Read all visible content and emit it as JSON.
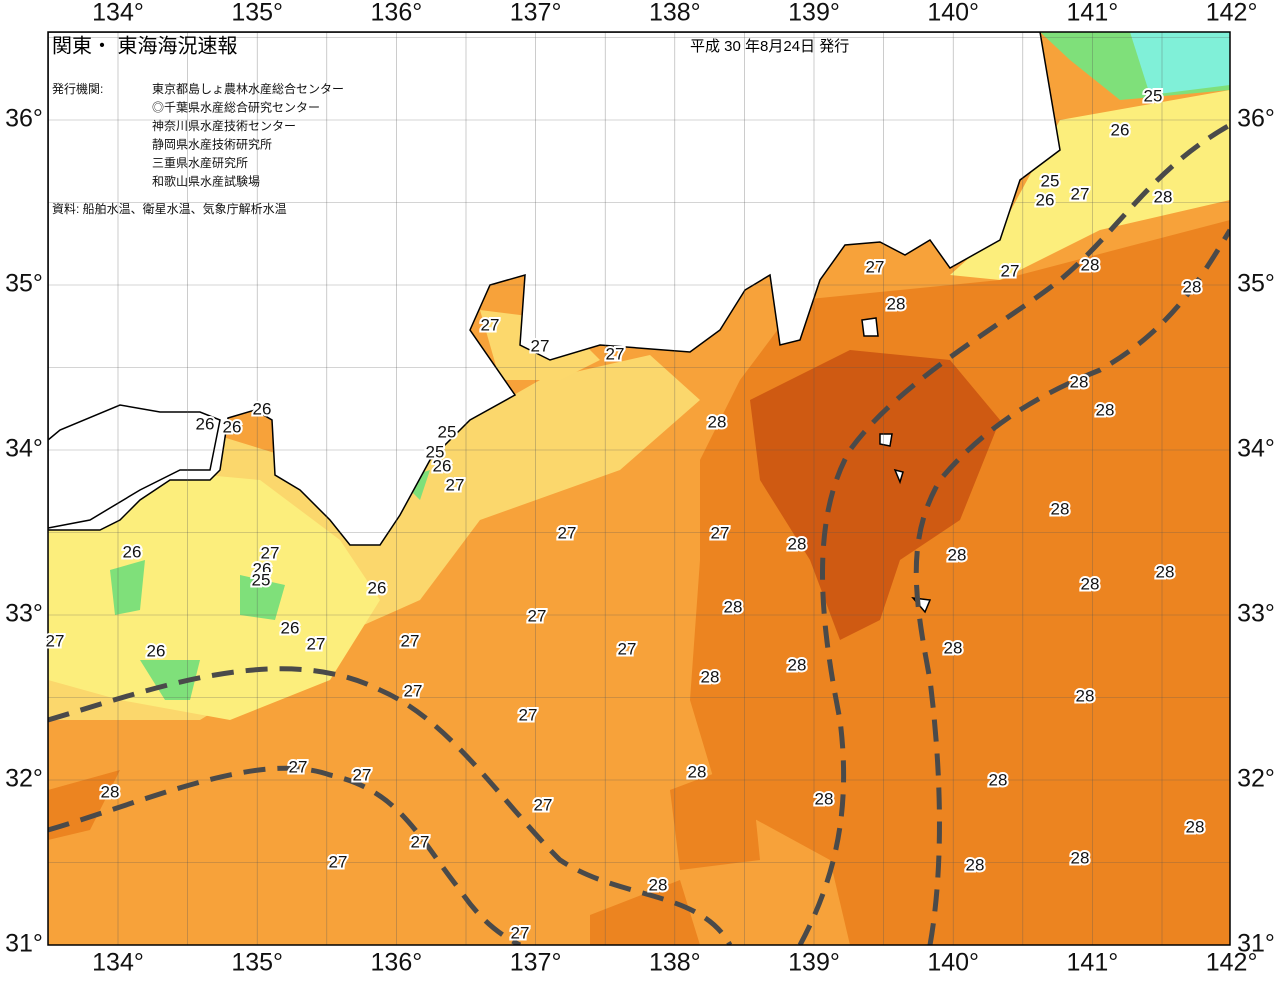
{
  "header": {
    "title": "関東・ 東海海況速報",
    "date": "平成 30 年8月24日 発行"
  },
  "issuers": {
    "label": "発行機関:",
    "items": [
      "東京都島しょ農林水産総合センター",
      "◎千葉県水産総合研究センター",
      "神奈川県水産技術センター",
      "静岡県水産技術研究所",
      "三重県水産研究所",
      "和歌山県水産試験場"
    ]
  },
  "source": "資料: 船舶水温、衛星水温、気象庁解析水温",
  "axes": {
    "lon_ticks": [
      "134°",
      "135°",
      "136°",
      "137°",
      "138°",
      "139°",
      "140°",
      "141°",
      "142°"
    ],
    "lat_ticks": [
      "36°",
      "35°",
      "34°",
      "33°",
      "32°",
      "31°"
    ]
  },
  "contour_labels": [
    25,
    26,
    25,
    26,
    27,
    28,
    27,
    27,
    28,
    28,
    28,
    27,
    27,
    27,
    26,
    26,
    26,
    25,
    25,
    26,
    27,
    28,
    28,
    28,
    28,
    27,
    27,
    28,
    28,
    26,
    27,
    26,
    25,
    26,
    28,
    28,
    27,
    28,
    27,
    26,
    27,
    27,
    26,
    27,
    28,
    28,
    28,
    27,
    27,
    28,
    27,
    27,
    28,
    28,
    28,
    27,
    28,
    27,
    28,
    27,
    28,
    28,
    28,
    27
  ]
}
